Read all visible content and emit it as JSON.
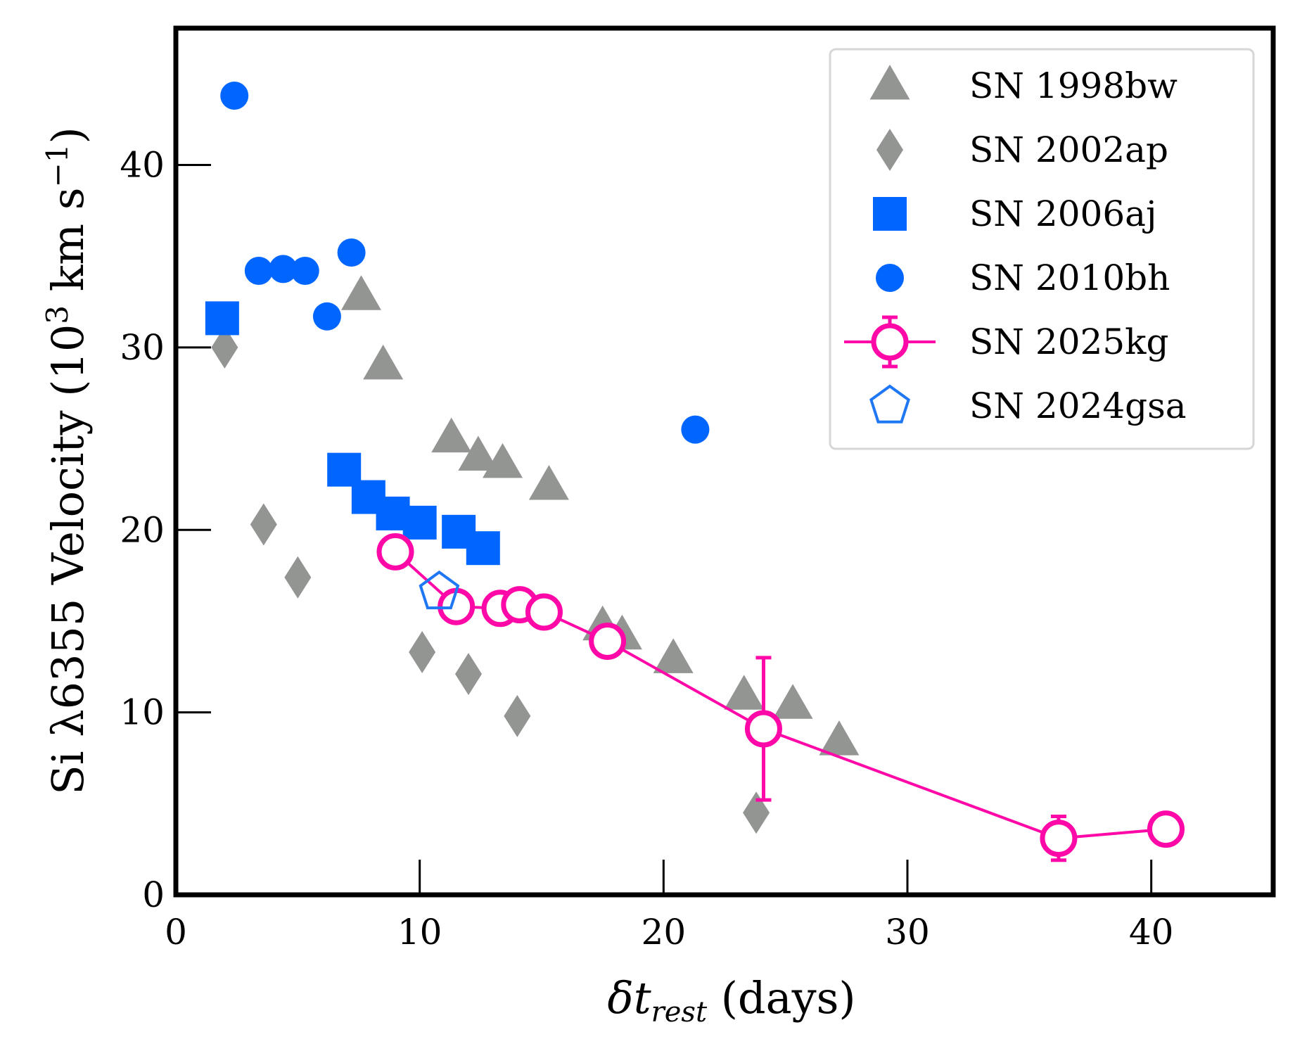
{
  "chart_data": {
    "type": "scatter",
    "xlabel": {
      "main": "δt",
      "sub": "rest",
      "tail": " (days)"
    },
    "ylabel": {
      "pre": "Si λ6355 Velocity (10",
      "sup1": "3",
      "mid": " km s",
      "sup2": "−1",
      "post": ")"
    },
    "xlim": [
      0,
      45
    ],
    "ylim": [
      0,
      47.5
    ],
    "xticks": [
      0,
      10,
      20,
      30,
      40
    ],
    "yticks": [
      0,
      10,
      20,
      30,
      40
    ],
    "xtick_labels": [
      "0",
      "10",
      "20",
      "30",
      "40"
    ],
    "ytick_labels": [
      "0",
      "10",
      "20",
      "30",
      "40"
    ],
    "legend_position": "top-right",
    "series": [
      {
        "name": "SN 1998bw",
        "marker": "triangle",
        "color": "#939593",
        "x": [
          7.6,
          8.5,
          11.3,
          12.4,
          13.4,
          15.3,
          17.5,
          18.3,
          20.4,
          23.3,
          25.3,
          27.2
        ],
        "y": [
          32.8,
          29.0,
          25.0,
          24.0,
          23.6,
          22.4,
          14.7,
          14.2,
          12.9,
          10.9,
          10.4,
          8.4
        ]
      },
      {
        "name": "SN 2002ap",
        "marker": "diamond",
        "color": "#939593",
        "x": [
          2.0,
          3.6,
          5.0,
          10.1,
          12.0,
          14.0,
          23.8
        ],
        "y": [
          30.0,
          20.3,
          17.4,
          13.3,
          12.1,
          9.8,
          4.5
        ]
      },
      {
        "name": "SN 2006aj",
        "marker": "square",
        "color": "#0066ff",
        "x": [
          1.9,
          6.9,
          7.9,
          8.9,
          10.0,
          11.6,
          12.6
        ],
        "y": [
          31.6,
          23.3,
          21.8,
          20.9,
          20.4,
          19.9,
          19.0
        ]
      },
      {
        "name": "SN 2010bh",
        "marker": "circle",
        "color": "#0066ff",
        "x": [
          2.4,
          3.4,
          4.4,
          5.3,
          6.2,
          7.2,
          21.3
        ],
        "y": [
          43.8,
          34.2,
          34.3,
          34.2,
          31.7,
          35.2,
          25.5
        ]
      },
      {
        "name": "SN 2025kg",
        "marker": "open-circle-line",
        "color": "#ff08a8",
        "x": [
          9.0,
          11.5,
          13.3,
          14.1,
          15.1,
          17.7,
          24.1,
          36.2,
          40.6
        ],
        "y": [
          18.8,
          15.8,
          15.7,
          15.9,
          15.5,
          13.9,
          9.1,
          3.1,
          3.6
        ],
        "yerr": [
          0.2,
          0.2,
          0.2,
          0.2,
          0.2,
          0.2,
          3.9,
          1.2,
          0.2
        ]
      },
      {
        "name": "SN 2024gsa",
        "marker": "open-pentagon",
        "color": "#1f77f4",
        "x": [
          10.8
        ],
        "y": [
          16.6
        ]
      }
    ]
  }
}
